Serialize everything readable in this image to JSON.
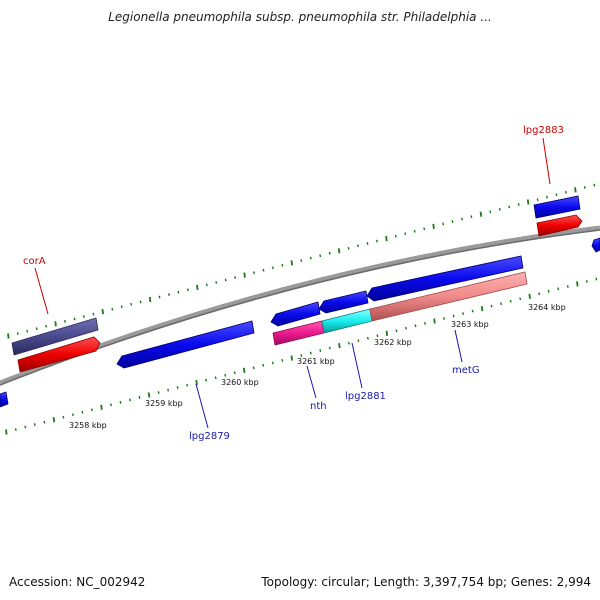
{
  "header": {
    "title": "Legionella pneumophila subsp. pneumophila str. Philadelphia ..."
  },
  "footer": {
    "accession": "Accession: NC_002942",
    "summary": "Topology: circular; Length: 3,397,754 bp; Genes: 2,994"
  },
  "ticks": [
    {
      "label": "3258 kbp"
    },
    {
      "label": "3259 kbp"
    },
    {
      "label": "3260 kbp"
    },
    {
      "label": "3261 kbp"
    },
    {
      "label": "3262 kbp"
    },
    {
      "label": "3263 kbp"
    },
    {
      "label": "3264 kbp"
    }
  ],
  "genes": [
    {
      "name": "corA",
      "color": "#cc0000"
    },
    {
      "name": "lpg2883",
      "color": "#cc0000"
    },
    {
      "name": "lpg2879",
      "color": "#1a1aaa"
    },
    {
      "name": "nth",
      "color": "#1a1aaa"
    },
    {
      "name": "lpg2881",
      "color": "#1a1aaa"
    },
    {
      "name": "metG",
      "color": "#1a1aaa"
    }
  ],
  "colors": {
    "backbone": "#808080",
    "tick": "#1a7a1a",
    "feature_blue": "#0a0aee",
    "feature_red": "#ee0000",
    "feature_navy": "#4a4a8e",
    "feature_magenta": "#ee1a8e",
    "feature_cyan": "#1aeeee",
    "feature_salmon": "#f08a8a"
  }
}
